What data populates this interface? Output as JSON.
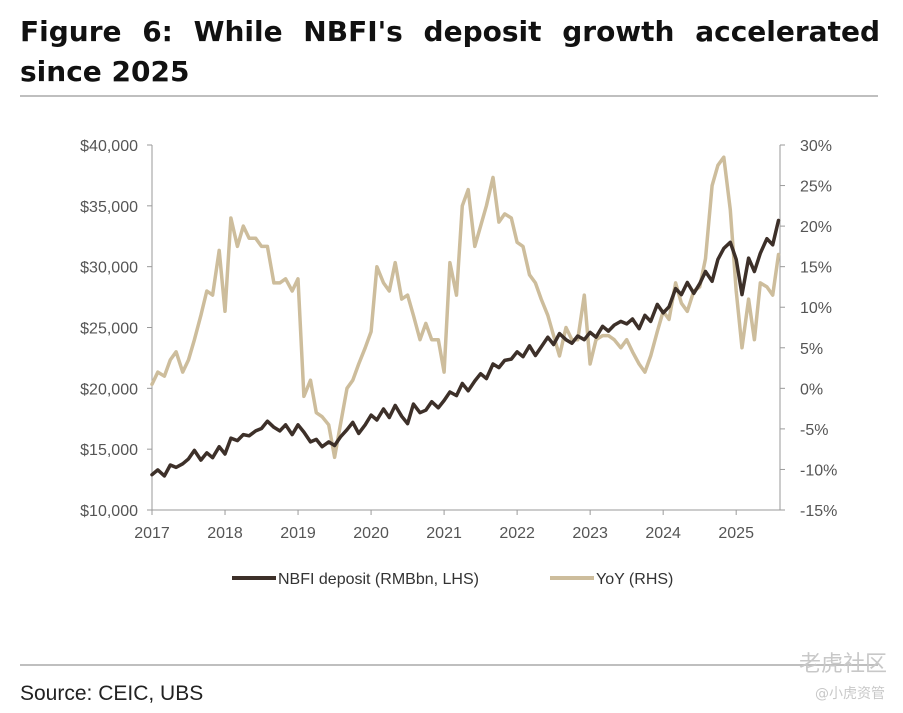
{
  "title": "Figure 6: While NBFI's deposit growth accelerated since 2025",
  "source": "Source: CEIC, UBS",
  "watermark": {
    "main": "老虎社区",
    "sub": "@小虎资管"
  },
  "colors": {
    "deposit": "#3d3029",
    "yoy": "#cdbd9c",
    "rule": "#bfbfbf"
  },
  "chart_data": {
    "type": "line",
    "x_range": [
      2017.0,
      2025.6
    ],
    "x_ticks": [
      "2017",
      "2018",
      "2019",
      "2020",
      "2021",
      "2022",
      "2023",
      "2024",
      "2025"
    ],
    "y_left": {
      "range": [
        10000,
        40000
      ],
      "ticks": [
        "$10,000",
        "$15,000",
        "$20,000",
        "$25,000",
        "$30,000",
        "$35,000",
        "$40,000"
      ]
    },
    "y_right": {
      "range": [
        -15,
        30
      ],
      "ticks": [
        "-15%",
        "-10%",
        "-5%",
        "0%",
        "5%",
        "10%",
        "15%",
        "20%",
        "25%",
        "30%"
      ]
    },
    "series": [
      {
        "name": "NBFI deposit (RMBbn, LHS)",
        "axis": "left",
        "x": [
          2017.0,
          2017.08,
          2017.17,
          2017.25,
          2017.33,
          2017.42,
          2017.5,
          2017.58,
          2017.67,
          2017.75,
          2017.83,
          2017.92,
          2018.0,
          2018.08,
          2018.17,
          2018.25,
          2018.33,
          2018.42,
          2018.5,
          2018.58,
          2018.67,
          2018.75,
          2018.83,
          2018.92,
          2019.0,
          2019.08,
          2019.17,
          2019.25,
          2019.33,
          2019.42,
          2019.5,
          2019.58,
          2019.67,
          2019.75,
          2019.83,
          2019.92,
          2020.0,
          2020.08,
          2020.17,
          2020.25,
          2020.33,
          2020.42,
          2020.5,
          2020.58,
          2020.67,
          2020.75,
          2020.83,
          2020.92,
          2021.0,
          2021.08,
          2021.17,
          2021.25,
          2021.33,
          2021.42,
          2021.5,
          2021.58,
          2021.67,
          2021.75,
          2021.83,
          2021.92,
          2022.0,
          2022.08,
          2022.17,
          2022.25,
          2022.33,
          2022.42,
          2022.5,
          2022.58,
          2022.67,
          2022.75,
          2022.83,
          2022.92,
          2023.0,
          2023.08,
          2023.17,
          2023.25,
          2023.33,
          2023.42,
          2023.5,
          2023.58,
          2023.67,
          2023.75,
          2023.83,
          2023.92,
          2024.0,
          2024.08,
          2024.17,
          2024.25,
          2024.33,
          2024.42,
          2024.5,
          2024.58,
          2024.67,
          2024.75,
          2024.83,
          2024.92,
          2025.0,
          2025.08,
          2025.17,
          2025.25,
          2025.33,
          2025.42,
          2025.5,
          2025.58
        ],
        "values": [
          12900,
          13300,
          12800,
          13700,
          13500,
          13800,
          14200,
          14900,
          14100,
          14700,
          14300,
          15200,
          14600,
          15900,
          15700,
          16200,
          16100,
          16500,
          16700,
          17300,
          16800,
          16500,
          17000,
          16200,
          17000,
          16400,
          15600,
          15800,
          15200,
          15600,
          15300,
          16000,
          16600,
          17200,
          16300,
          17000,
          17800,
          17400,
          18300,
          17600,
          18600,
          17700,
          17100,
          18700,
          18000,
          18200,
          18900,
          18400,
          19000,
          19700,
          19400,
          20400,
          19800,
          20600,
          21200,
          20800,
          22000,
          21700,
          22300,
          22400,
          23000,
          22600,
          23500,
          22700,
          23400,
          24200,
          23600,
          24500,
          24000,
          23700,
          24300,
          24000,
          24600,
          24200,
          25100,
          24700,
          25200,
          25500,
          25300,
          25700,
          24900,
          26000,
          25500,
          26900,
          26200,
          26700,
          28200,
          27700,
          28700,
          27800,
          28600,
          29600,
          28800,
          30600,
          31500,
          32000,
          30600,
          27700,
          30700,
          29600,
          31100,
          32300,
          31800,
          33800
        ]
      },
      {
        "name": "YoY (RHS)",
        "axis": "right",
        "x": [
          2017.0,
          2017.08,
          2017.17,
          2017.25,
          2017.33,
          2017.42,
          2017.5,
          2017.58,
          2017.67,
          2017.75,
          2017.83,
          2017.92,
          2018.0,
          2018.08,
          2018.17,
          2018.25,
          2018.33,
          2018.42,
          2018.5,
          2018.58,
          2018.67,
          2018.75,
          2018.83,
          2018.92,
          2019.0,
          2019.08,
          2019.17,
          2019.25,
          2019.33,
          2019.42,
          2019.5,
          2019.58,
          2019.67,
          2019.75,
          2019.83,
          2019.92,
          2020.0,
          2020.08,
          2020.17,
          2020.25,
          2020.33,
          2020.42,
          2020.5,
          2020.58,
          2020.67,
          2020.75,
          2020.83,
          2020.92,
          2021.0,
          2021.08,
          2021.17,
          2021.25,
          2021.33,
          2021.42,
          2021.5,
          2021.58,
          2021.67,
          2021.75,
          2021.83,
          2021.92,
          2022.0,
          2022.08,
          2022.17,
          2022.25,
          2022.33,
          2022.42,
          2022.5,
          2022.58,
          2022.67,
          2022.75,
          2022.83,
          2022.92,
          2023.0,
          2023.08,
          2023.17,
          2023.25,
          2023.33,
          2023.42,
          2023.5,
          2023.58,
          2023.67,
          2023.75,
          2023.83,
          2023.92,
          2024.0,
          2024.08,
          2024.17,
          2024.25,
          2024.33,
          2024.42,
          2024.5,
          2024.58,
          2024.67,
          2024.75,
          2024.83,
          2024.92,
          2025.0,
          2025.08,
          2025.17,
          2025.25,
          2025.33,
          2025.42,
          2025.5,
          2025.58
        ],
        "values": [
          0.5,
          2.0,
          1.5,
          3.5,
          4.5,
          2.0,
          3.5,
          6.0,
          9.0,
          12.0,
          11.5,
          17.0,
          9.5,
          21.0,
          17.5,
          20.0,
          18.5,
          18.5,
          17.5,
          17.5,
          13.0,
          13.0,
          13.5,
          12.0,
          13.5,
          -1.0,
          1.0,
          -3.0,
          -3.5,
          -4.5,
          -8.5,
          -4.5,
          0.0,
          1.0,
          3.0,
          5.0,
          7.0,
          15.0,
          13.0,
          12.0,
          15.5,
          11.0,
          11.5,
          9.0,
          6.0,
          8.0,
          6.0,
          6.0,
          2.0,
          15.5,
          11.5,
          22.5,
          24.5,
          17.5,
          20.0,
          22.5,
          26.0,
          20.5,
          21.5,
          21.0,
          18.0,
          17.5,
          14.0,
          13.0,
          11.0,
          9.0,
          6.5,
          4.0,
          7.5,
          6.0,
          6.0,
          11.5,
          3.0,
          6.0,
          6.5,
          6.5,
          6.0,
          5.0,
          6.0,
          4.5,
          3.0,
          2.0,
          4.0,
          7.0,
          9.5,
          8.5,
          13.0,
          10.5,
          9.5,
          12.0,
          12.5,
          16.0,
          25.0,
          27.5,
          28.5,
          22.0,
          12.0,
          5.0,
          11.0,
          6.0,
          13.0,
          12.5,
          11.5,
          16.5
        ]
      }
    ],
    "legend_position": "bottom",
    "grid": false
  }
}
